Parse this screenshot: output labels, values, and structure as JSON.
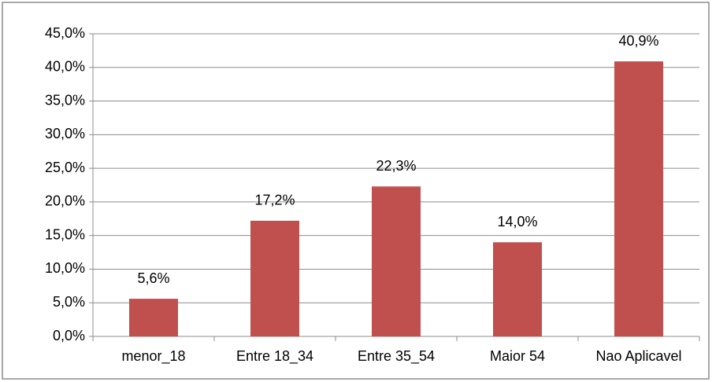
{
  "chart_data": {
    "type": "bar",
    "categories": [
      "menor_18",
      "Entre 18_34",
      "Entre 35_54",
      "Maior 54",
      "Nao Aplicavel"
    ],
    "values": [
      5.6,
      17.2,
      22.3,
      14.0,
      40.9
    ],
    "value_labels": [
      "5,6%",
      "17,2%",
      "22,3%",
      "14,0%",
      "40,9%"
    ],
    "color": "#c0504d",
    "ylim": [
      0,
      45
    ],
    "yticks": [
      {
        "value": 0,
        "label": "0,0%"
      },
      {
        "value": 5,
        "label": "5,0%"
      },
      {
        "value": 10,
        "label": "10,0%"
      },
      {
        "value": 15,
        "label": "15,0%"
      },
      {
        "value": 20,
        "label": "20,0%"
      },
      {
        "value": 25,
        "label": "25,0%"
      },
      {
        "value": 30,
        "label": "30,0%"
      },
      {
        "value": 35,
        "label": "35,0%"
      },
      {
        "value": 40,
        "label": "40,0%"
      },
      {
        "value": 45,
        "label": "45,0%"
      }
    ],
    "grid": true
  }
}
